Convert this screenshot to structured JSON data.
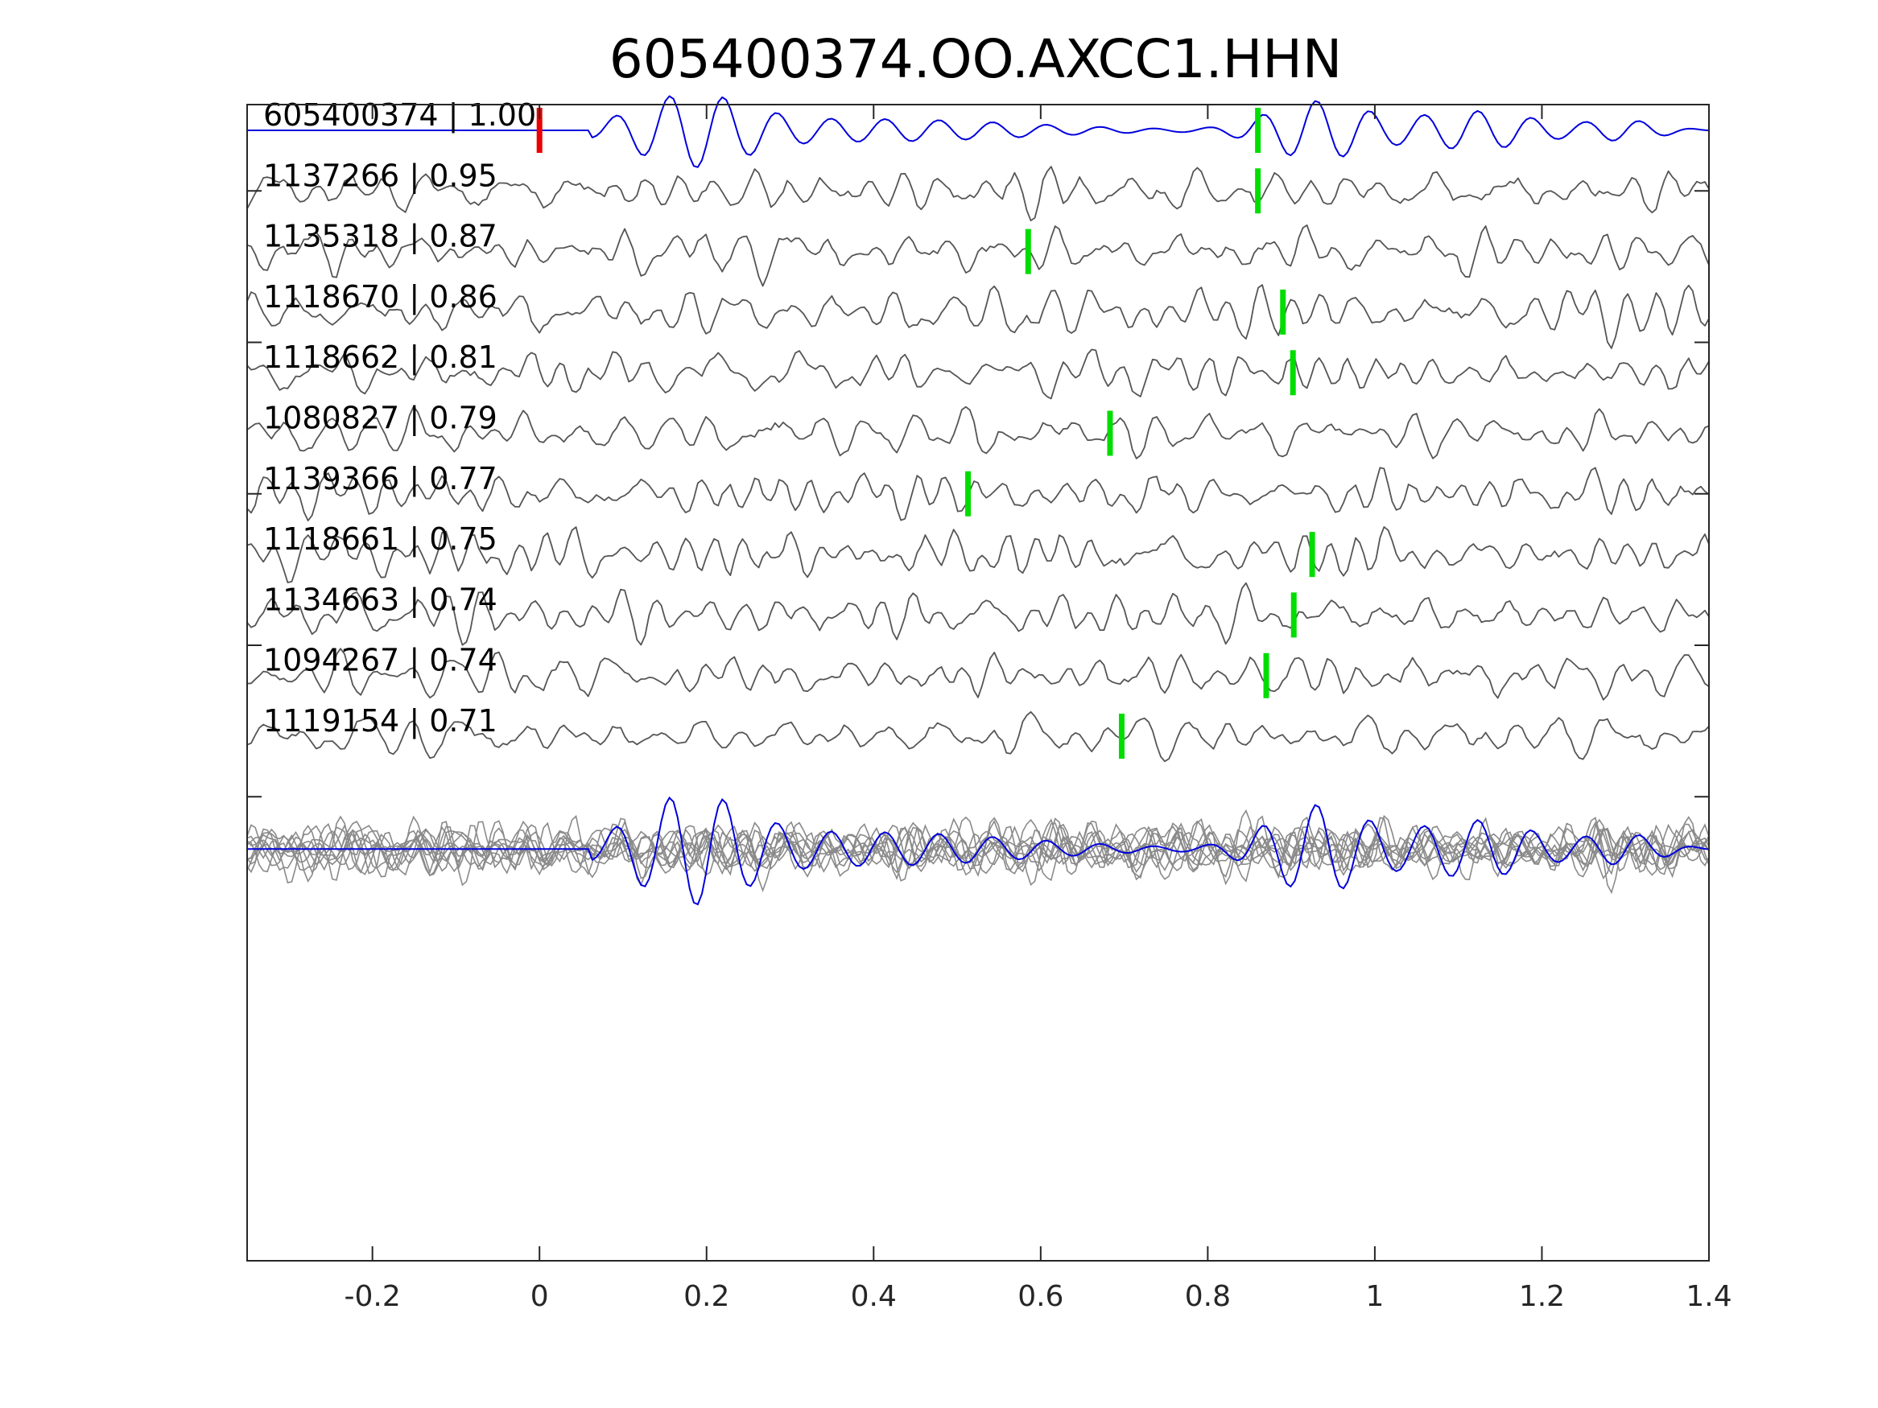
{
  "chart_data": {
    "type": "line",
    "title": "605400374.OO.AXCC1.HHN",
    "xlabel": "",
    "ylabel": "",
    "xlim": [
      -0.35,
      1.4
    ],
    "xticks": [
      -0.2,
      0,
      0.2,
      0.4,
      0.6,
      0.8,
      1,
      1.2,
      1.4
    ],
    "xtick_labels": [
      "-0.2",
      "0",
      "0.2",
      "0.4",
      "0.6",
      "0.8",
      "1",
      "1.2",
      "1.4"
    ],
    "grid": false,
    "colors": {
      "template": "#0000dd",
      "match": "#555555",
      "stack": "#8a8a8a",
      "origin_marker": "#ee0000",
      "pick_marker": "#00dd00",
      "axis": "#262626"
    },
    "origin_marker_time": 0,
    "traces": [
      {
        "id": "605400374",
        "cc": "1.00",
        "label": "605400374 | 1.00",
        "template": true,
        "pick": 0.86
      },
      {
        "id": "1137266",
        "cc": "0.95",
        "label": "1137266 | 0.95",
        "pick": 0.86
      },
      {
        "id": "1135318",
        "cc": "0.87",
        "label": "1135318 | 0.87",
        "pick": 0.585
      },
      {
        "id": "1118670",
        "cc": "0.86",
        "label": "1118670 | 0.86",
        "pick": 0.89
      },
      {
        "id": "1118662",
        "cc": "0.81",
        "label": "1118662 | 0.81",
        "pick": 0.902
      },
      {
        "id": "1080827",
        "cc": "0.79",
        "label": "1080827 | 0.79",
        "pick": 0.683
      },
      {
        "id": "1139366",
        "cc": "0.77",
        "label": "1139366 | 0.77",
        "pick": 0.513
      },
      {
        "id": "1118661",
        "cc": "0.75",
        "label": "1118661 | 0.75",
        "pick": 0.925
      },
      {
        "id": "1134663",
        "cc": "0.74",
        "label": "1134663 | 0.74",
        "pick": 0.903
      },
      {
        "id": "1094267",
        "cc": "0.74",
        "label": "1094267 | 0.74",
        "pick": 0.87
      },
      {
        "id": "1119154",
        "cc": "0.71",
        "label": "1119154 | 0.71",
        "pick": 0.697
      }
    ]
  }
}
